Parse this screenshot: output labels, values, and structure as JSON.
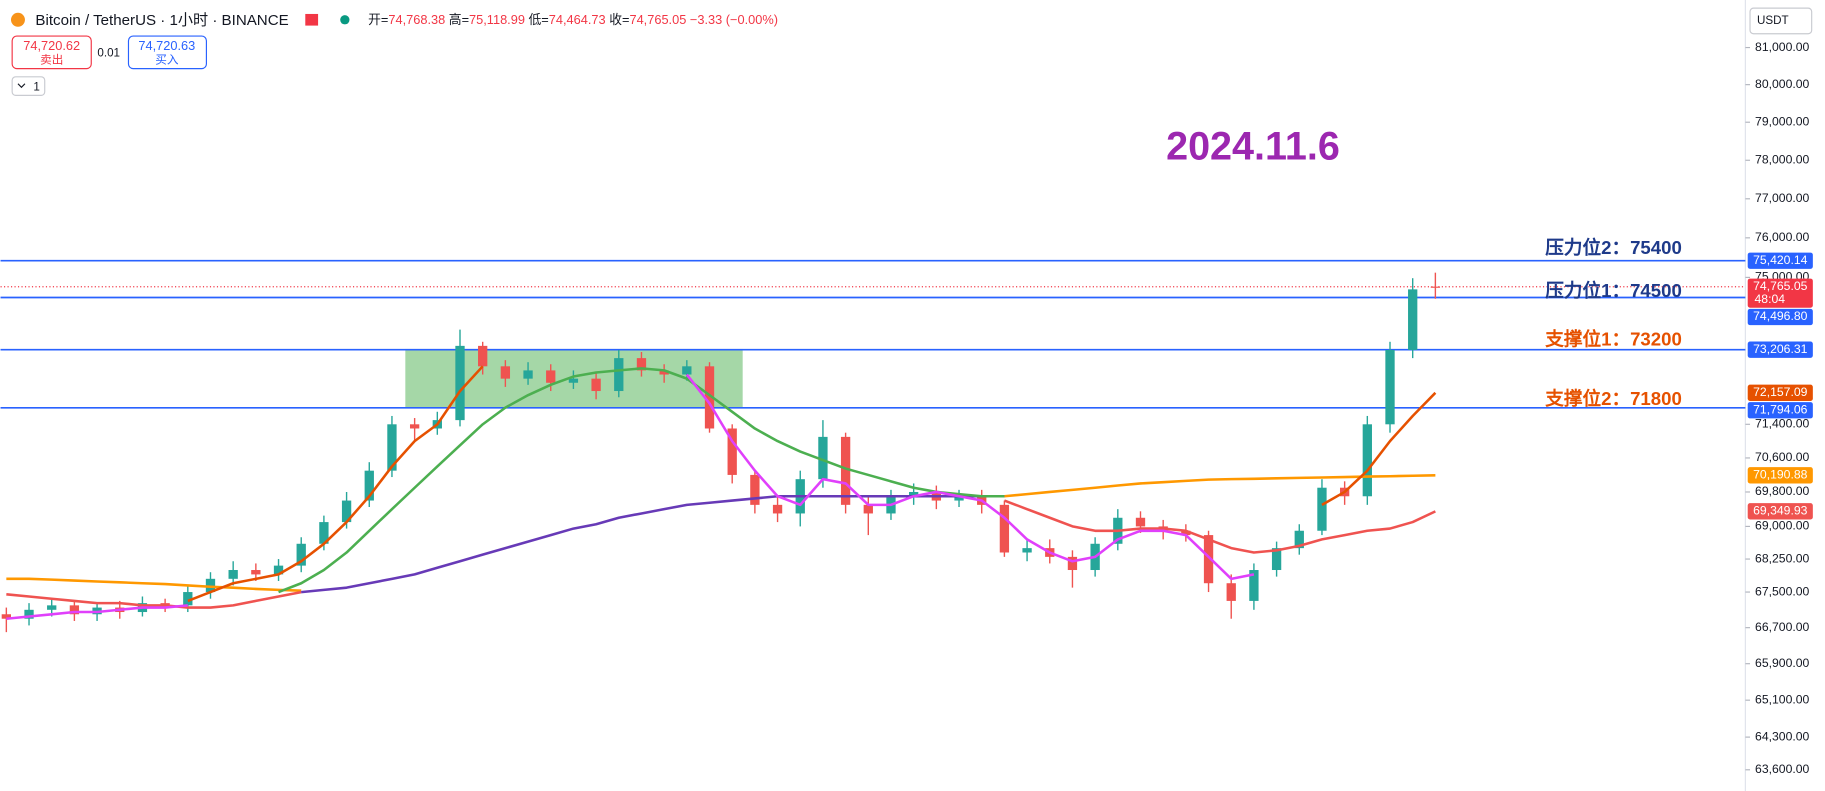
{
  "header": {
    "symbol": "Bitcoin / TetherUS · 1小时 · BINANCE",
    "ohlc": [
      {
        "label": "开=",
        "value": "74,768.38"
      },
      {
        "label": "高=",
        "value": "75,118.99"
      },
      {
        "label": "低=",
        "value": "74,464.73"
      },
      {
        "label": "收=",
        "value": "74,765.05"
      }
    ],
    "change": "−3.33 (−0.00%)",
    "sell": {
      "price": "74,720.62",
      "label": "卖出"
    },
    "spread": "0.01",
    "buy": {
      "price": "74,720.63",
      "label": "买入"
    },
    "count": "1",
    "currency": "USDT"
  },
  "chart_data": {
    "type": "candlestick",
    "log_scale": true,
    "ylim": [
      63150,
      82300
    ],
    "yticks": [
      {
        "value": 81000,
        "label": "81,000.00"
      },
      {
        "value": 80000,
        "label": "80,000.00"
      },
      {
        "value": 79000,
        "label": "79,000.00"
      },
      {
        "value": 78000,
        "label": "78,000.00"
      },
      {
        "value": 77000,
        "label": "77,000.00"
      },
      {
        "value": 76000,
        "label": "76,000.00"
      },
      {
        "value": 75000,
        "label": "75,000.00"
      },
      {
        "value": 71400,
        "label": "71,400.00"
      },
      {
        "value": 70600,
        "label": "70,600.00"
      },
      {
        "value": 69800,
        "label": "69,800.00"
      },
      {
        "value": 69000,
        "label": "69,000.00"
      },
      {
        "value": 68250,
        "label": "68,250.00"
      },
      {
        "value": 67500,
        "label": "67,500.00"
      },
      {
        "value": 66700,
        "label": "66,700.00"
      },
      {
        "value": 65900,
        "label": "65,900.00"
      },
      {
        "value": 65100,
        "label": "65,100.00"
      },
      {
        "value": 64300,
        "label": "64,300.00"
      },
      {
        "value": 63600,
        "label": "63,600.00"
      }
    ],
    "up_color": "#26a69a",
    "down_color": "#ef5350",
    "open": [
      67000,
      66900,
      67100,
      67200,
      67000,
      67150,
      67050,
      67250,
      67200,
      67500,
      67800,
      68000,
      67900,
      68100,
      68600,
      69100,
      69600,
      70300,
      71400,
      71300,
      71500,
      73300,
      72800,
      72500,
      72700,
      72400,
      72500,
      72200,
      73000,
      72700,
      72600,
      72800,
      71300,
      70200,
      69500,
      69300,
      70100,
      71100,
      69500,
      69300,
      69700,
      69800,
      69600,
      69700,
      69500,
      68400,
      68500,
      68300,
      68000,
      68600,
      69200,
      69000,
      68900,
      68800,
      67700,
      67300,
      68000,
      68500,
      68900,
      69900,
      69700,
      71400,
      73200,
      74768.38
    ],
    "high": [
      67150,
      67250,
      67350,
      67300,
      67250,
      67300,
      67400,
      67350,
      67650,
      67950,
      68200,
      68150,
      68250,
      68750,
      69250,
      69800,
      70500,
      71600,
      71550,
      71700,
      73700,
      73400,
      72950,
      72900,
      72850,
      72700,
      72650,
      73200,
      73150,
      72850,
      72950,
      72900,
      71400,
      70300,
      69700,
      70300,
      71500,
      71200,
      69700,
      69850,
      70000,
      69950,
      69850,
      69850,
      69600,
      68700,
      68700,
      68450,
      68750,
      69400,
      69350,
      69150,
      69050,
      68900,
      67900,
      68150,
      68650,
      69050,
      70100,
      70050,
      71600,
      73400,
      74980,
      75118.99
    ],
    "low": [
      66600,
      66750,
      66950,
      66850,
      66850,
      66900,
      66950,
      67050,
      67050,
      67350,
      67650,
      67750,
      67750,
      67950,
      68450,
      68950,
      69450,
      70150,
      71000,
      71150,
      71350,
      72600,
      72300,
      72350,
      72200,
      72250,
      72000,
      72050,
      72550,
      72400,
      72450,
      71200,
      70000,
      69300,
      69100,
      69000,
      69900,
      69300,
      68800,
      69150,
      69500,
      69400,
      69450,
      69300,
      68300,
      68200,
      68150,
      67600,
      67850,
      68450,
      68850,
      68700,
      68650,
      67500,
      66900,
      67100,
      67850,
      68350,
      68800,
      69500,
      69500,
      71200,
      73000,
      74464.73
    ],
    "close": [
      66900,
      67100,
      67200,
      67000,
      67150,
      67050,
      67250,
      67200,
      67500,
      67800,
      68000,
      67900,
      68100,
      68600,
      69100,
      69600,
      70300,
      71400,
      71300,
      71500,
      73300,
      72800,
      72500,
      72700,
      72400,
      72500,
      72200,
      73000,
      72700,
      72600,
      72800,
      71300,
      70200,
      69500,
      69300,
      70100,
      71100,
      69500,
      69300,
      69700,
      69800,
      69600,
      69700,
      69500,
      68400,
      68500,
      68300,
      68000,
      68600,
      69200,
      69000,
      68900,
      68800,
      67700,
      67300,
      68000,
      68500,
      68900,
      69900,
      69700,
      71400,
      73200,
      74700,
      74765.05
    ],
    "series": [
      {
        "color": "#ff9800",
        "values": [
          67800,
          67800,
          67780,
          67760,
          67740,
          67720,
          67700,
          67680,
          67650,
          67620,
          67600,
          67570,
          67550,
          67530,
          null,
          null,
          null,
          null,
          null,
          null,
          null,
          null,
          null,
          null,
          null,
          null,
          null,
          null,
          null,
          null,
          null,
          null,
          null,
          null,
          null,
          null,
          null,
          null,
          null,
          null,
          null,
          null,
          null,
          null,
          69700,
          69750,
          69800,
          69850,
          69900,
          69950,
          70000,
          70030,
          70060,
          70090,
          70100,
          70110,
          70120,
          70130,
          70140,
          70150,
          70160,
          70170,
          70180,
          70190.88
        ]
      },
      {
        "color": "#ef5350",
        "values": [
          67450,
          67400,
          67350,
          67300,
          67250,
          67250,
          67200,
          67200,
          67150,
          67150,
          67200,
          67300,
          67400,
          67500,
          null,
          null,
          null,
          null,
          null,
          null,
          null,
          null,
          null,
          null,
          null,
          null,
          null,
          null,
          null,
          null,
          null,
          null,
          null,
          null,
          null,
          null,
          null,
          null,
          null,
          null,
          null,
          null,
          null,
          null,
          69600,
          69400,
          69200,
          69000,
          68900,
          68900,
          68950,
          68950,
          68900,
          68700,
          68500,
          68400,
          68450,
          68550,
          68700,
          68800,
          68900,
          68950,
          69100,
          69349.93
        ]
      },
      {
        "color": "#673ab7",
        "values": [
          null,
          null,
          null,
          null,
          null,
          null,
          null,
          null,
          null,
          null,
          null,
          null,
          null,
          67500,
          67550,
          67600,
          67700,
          67800,
          67900,
          68050,
          68200,
          68350,
          68500,
          68650,
          68800,
          68950,
          69050,
          69200,
          69300,
          69400,
          69500,
          69550,
          69600,
          69650,
          69700,
          69700,
          69700,
          69700,
          69700,
          69700,
          69700,
          69700,
          69700,
          69700,
          69700,
          null,
          null,
          null,
          null,
          null,
          null,
          null,
          null,
          null,
          null,
          null,
          null,
          null,
          null,
          null,
          null,
          null,
          null,
          null
        ]
      },
      {
        "color": "#4caf50",
        "values": [
          null,
          null,
          null,
          null,
          null,
          null,
          null,
          null,
          null,
          null,
          null,
          null,
          67500,
          67700,
          68000,
          68400,
          68900,
          69400,
          69900,
          70400,
          70900,
          71400,
          71800,
          72100,
          72350,
          72550,
          72650,
          72700,
          72750,
          72700,
          72500,
          72100,
          71700,
          71300,
          71000,
          70750,
          70550,
          70350,
          70200,
          70050,
          69900,
          69800,
          69750,
          69700,
          69700,
          null,
          null,
          null,
          null,
          null,
          null,
          null,
          null,
          null,
          null,
          null,
          null,
          null,
          null,
          null,
          null,
          null,
          null,
          null
        ]
      },
      {
        "color": "#e040fb",
        "values": [
          66900,
          66950,
          67000,
          67050,
          67050,
          67100,
          67150,
          67150,
          67200,
          null,
          null,
          null,
          null,
          null,
          null,
          null,
          null,
          null,
          null,
          null,
          null,
          null,
          null,
          null,
          null,
          null,
          null,
          null,
          null,
          null,
          72600,
          71900,
          71000,
          70300,
          69700,
          69500,
          70100,
          70000,
          69500,
          69500,
          69700,
          69800,
          69700,
          69600,
          69200,
          68700,
          68400,
          68200,
          68300,
          68700,
          68900,
          68900,
          68800,
          68300,
          67800,
          67900,
          null,
          null,
          null,
          null,
          null,
          null,
          null,
          null
        ]
      },
      {
        "color": "#e65100",
        "values": [
          null,
          null,
          null,
          null,
          null,
          null,
          null,
          null,
          67300,
          67500,
          67700,
          67800,
          67900,
          68200,
          68600,
          69100,
          69700,
          70400,
          71000,
          71400,
          72200,
          72800,
          null,
          null,
          null,
          null,
          null,
          null,
          null,
          null,
          null,
          null,
          null,
          null,
          null,
          null,
          null,
          null,
          null,
          null,
          null,
          null,
          null,
          null,
          null,
          null,
          null,
          null,
          null,
          null,
          null,
          null,
          null,
          null,
          null,
          null,
          null,
          null,
          69500,
          69800,
          70300,
          71000,
          71600,
          72157.09
        ]
      }
    ],
    "price_labels": [
      {
        "value": 75420.14,
        "label": "75,420.14",
        "color": "#2962ff",
        "line": "solid"
      },
      {
        "value": 74765.05,
        "label": "74,765.05",
        "sub": "48:04",
        "color": "#f23645",
        "line": "dotted"
      },
      {
        "value": 74496.8,
        "label": "74,496.80",
        "color": "#2962ff",
        "line": "solid"
      },
      {
        "value": 73206.31,
        "label": "73,206.31",
        "color": "#2962ff",
        "line": "solid"
      },
      {
        "value": 72157.09,
        "label": "72,157.09",
        "color": "#e65100"
      },
      {
        "value": 71794.06,
        "label": "71,794.06",
        "color": "#2962ff",
        "line": "solid"
      },
      {
        "value": 70190.88,
        "label": "70,190.88",
        "color": "#ff9800"
      },
      {
        "value": 69349.93,
        "label": "69,349.93",
        "color": "#ef5350"
      }
    ],
    "date_label": "2024.11.6",
    "annotations": [
      "压力位2：75400",
      "压力位1：74500",
      "支撑位1：73200",
      "支撑位2：71800"
    ]
  }
}
